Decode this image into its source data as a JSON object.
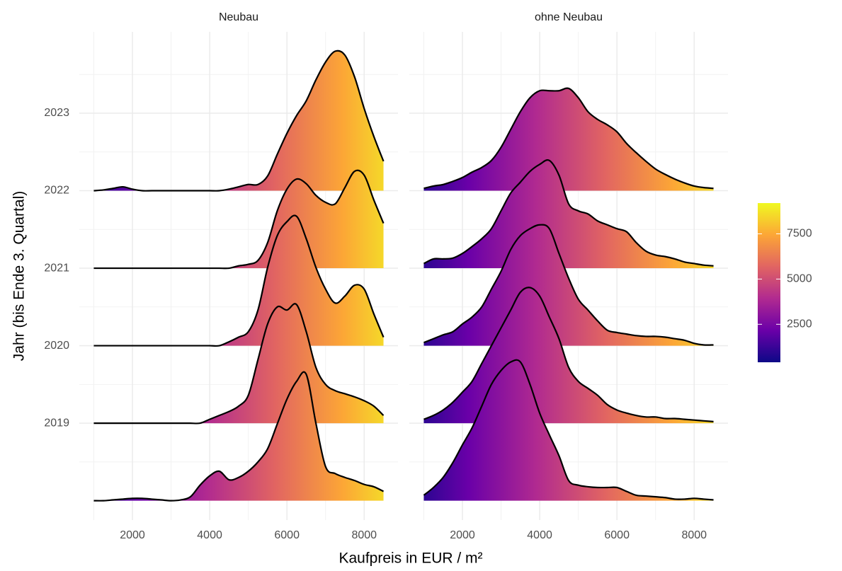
{
  "chart_data": {
    "type": "ridgeline",
    "xlabel": "Kaufpreis in EUR / m²",
    "ylabel": "Jahr (bis Ende 3. Quartal)",
    "x": [
      1000,
      1250,
      1500,
      1750,
      2000,
      2250,
      2500,
      2750,
      3000,
      3250,
      3500,
      3750,
      4000,
      4250,
      4500,
      4750,
      5000,
      5250,
      5500,
      5750,
      6000,
      6250,
      6500,
      6750,
      7000,
      7250,
      7500,
      7750,
      8000,
      8250,
      8500
    ],
    "xlim": [
      625,
      8875
    ],
    "xticks": [
      2000,
      4000,
      6000,
      8000
    ],
    "ylim": [
      2017.75,
      2024.05
    ],
    "yticks": [
      2019,
      2020,
      2021,
      2022,
      2023
    ],
    "grid": true,
    "line_color": "#000000",
    "fill_limits": [
      400,
      9200
    ],
    "colorbar_ticks": [
      2500,
      5000,
      7500
    ],
    "colormap": [
      "#0d0887",
      "#6a00a8",
      "#b12a90",
      "#e16462",
      "#fca636",
      "#f0f921"
    ],
    "facets": [
      {
        "title": "Neubau",
        "ridges": [
          {
            "baseline": 2018,
            "values": [
              0,
              0,
              0.01,
              0.02,
              0.03,
              0.03,
              0.02,
              0.01,
              0,
              0.01,
              0.05,
              0.2,
              0.32,
              0.38,
              0.27,
              0.3,
              0.38,
              0.5,
              0.67,
              0.99,
              1.31,
              1.54,
              1.63,
              1.0,
              0.44,
              0.35,
              0.3,
              0.26,
              0.21,
              0.18,
              0.12
            ]
          },
          {
            "baseline": 2019,
            "values": [
              0,
              0,
              0,
              0,
              0,
              0,
              0,
              0,
              0,
              0,
              0,
              0,
              0.05,
              0.1,
              0.15,
              0.22,
              0.36,
              0.82,
              1.28,
              1.5,
              1.46,
              1.53,
              1.18,
              0.72,
              0.5,
              0.42,
              0.38,
              0.34,
              0.29,
              0.22,
              0.1
            ]
          },
          {
            "baseline": 2020,
            "values": [
              0,
              0,
              0,
              0,
              0,
              0,
              0,
              0,
              0,
              0,
              0,
              0,
              0,
              0,
              0.05,
              0.11,
              0.18,
              0.46,
              1.01,
              1.42,
              1.6,
              1.67,
              1.38,
              1.01,
              0.73,
              0.55,
              0.64,
              0.78,
              0.73,
              0.41,
              0.11
            ]
          },
          {
            "baseline": 2021,
            "values": [
              0,
              0,
              0,
              0,
              0,
              0,
              0,
              0,
              0,
              0,
              0,
              0,
              0,
              0,
              0,
              0.03,
              0.05,
              0.1,
              0.33,
              0.74,
              1.02,
              1.15,
              1.09,
              0.94,
              0.85,
              0.83,
              1.04,
              1.25,
              1.2,
              0.88,
              0.58
            ]
          },
          {
            "baseline": 2022,
            "values": [
              0,
              0.01,
              0.03,
              0.05,
              0.02,
              0,
              0,
              0,
              0,
              0,
              0,
              0,
              0,
              0,
              0.02,
              0.05,
              0.08,
              0.08,
              0.19,
              0.47,
              0.74,
              0.97,
              1.16,
              1.43,
              1.66,
              1.8,
              1.75,
              1.47,
              1.06,
              0.7,
              0.38
            ]
          }
        ]
      },
      {
        "title": "ohne Neubau",
        "ridges": [
          {
            "baseline": 2018,
            "values": [
              0.07,
              0.17,
              0.3,
              0.49,
              0.72,
              0.94,
              1.22,
              1.5,
              1.68,
              1.79,
              1.79,
              1.5,
              1.13,
              0.85,
              0.58,
              0.26,
              0.2,
              0.18,
              0.17,
              0.17,
              0.17,
              0.12,
              0.07,
              0.06,
              0.05,
              0.04,
              0.02,
              0.02,
              0.03,
              0.02,
              0.01
            ]
          },
          {
            "baseline": 2019,
            "values": [
              0.05,
              0.1,
              0.17,
              0.27,
              0.4,
              0.54,
              0.77,
              1.0,
              1.23,
              1.46,
              1.69,
              1.75,
              1.64,
              1.37,
              1.09,
              0.72,
              0.54,
              0.45,
              0.36,
              0.24,
              0.17,
              0.13,
              0.1,
              0.08,
              0.08,
              0.06,
              0.06,
              0.05,
              0.04,
              0.03,
              0.02
            ]
          },
          {
            "baseline": 2020,
            "values": [
              0.04,
              0.09,
              0.14,
              0.18,
              0.28,
              0.37,
              0.5,
              0.73,
              0.96,
              1.24,
              1.42,
              1.51,
              1.56,
              1.51,
              1.19,
              0.87,
              0.6,
              0.46,
              0.32,
              0.2,
              0.17,
              0.15,
              0.13,
              0.12,
              0.12,
              0.11,
              0.09,
              0.07,
              0.03,
              0.01,
              0.01
            ]
          },
          {
            "baseline": 2021,
            "values": [
              0.06,
              0.12,
              0.12,
              0.13,
              0.19,
              0.28,
              0.38,
              0.51,
              0.74,
              0.97,
              1.11,
              1.25,
              1.34,
              1.39,
              1.2,
              0.83,
              0.74,
              0.7,
              0.61,
              0.56,
              0.51,
              0.47,
              0.33,
              0.22,
              0.17,
              0.15,
              0.12,
              0.08,
              0.06,
              0.04,
              0.03
            ]
          },
          {
            "baseline": 2022,
            "values": [
              0.03,
              0.06,
              0.08,
              0.12,
              0.17,
              0.24,
              0.3,
              0.39,
              0.56,
              0.79,
              1.02,
              1.2,
              1.29,
              1.29,
              1.29,
              1.32,
              1.2,
              1.02,
              0.92,
              0.85,
              0.76,
              0.61,
              0.49,
              0.38,
              0.28,
              0.21,
              0.15,
              0.1,
              0.06,
              0.04,
              0.03
            ]
          }
        ]
      }
    ]
  }
}
